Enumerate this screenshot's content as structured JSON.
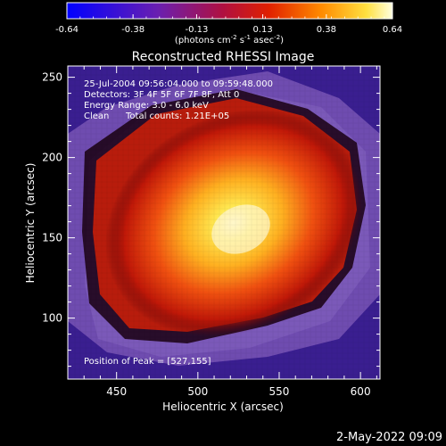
{
  "colorbar": {
    "ticks": [
      "-0.64",
      "-0.38",
      "-0.13",
      "0.13",
      "0.38",
      "0.64"
    ],
    "tick_values": [
      -0.64,
      -0.38,
      -0.13,
      0.13,
      0.38,
      0.64
    ],
    "range": [
      -0.64,
      0.64
    ],
    "units_label": "(photons cm",
    "units_sup1": "-2",
    "units_mid1": " s",
    "units_sup2": "-1",
    "units_mid2": " asec",
    "units_sup3": "-2",
    "units_end": ")"
  },
  "header": {
    "line1": "25-Jul-2004 09:56:04.000 to 09:59:48.000",
    "line2": "Detectors: 3F 4F 5F 6F 7F 8F, Att 0",
    "line3": "Energy Range: 3.0 - 6.0 keV",
    "line4_a": "Clean",
    "line4_b": "Total counts: 1.21E+05"
  },
  "peak_note": "Position of Peak = [527,155]",
  "footer_date": "2-May-2022 09:09",
  "colors": {
    "bg_low": "#241070",
    "purple": "#6a4aa8",
    "peak": "#fff8c0"
  },
  "chart_data": {
    "type": "heatmap",
    "title": "Reconstructed RHESSI Image",
    "xlabel": "Heliocentric X (arcsec)",
    "ylabel": "Heliocentric Y (arcsec)",
    "xlim": [
      420,
      612
    ],
    "ylim": [
      62,
      257
    ],
    "xticks": [
      450,
      500,
      550,
      600
    ],
    "yticks": [
      100,
      150,
      200,
      250
    ],
    "peak": [
      527,
      155
    ],
    "colorbar_range": [
      -0.64,
      0.64
    ]
  }
}
